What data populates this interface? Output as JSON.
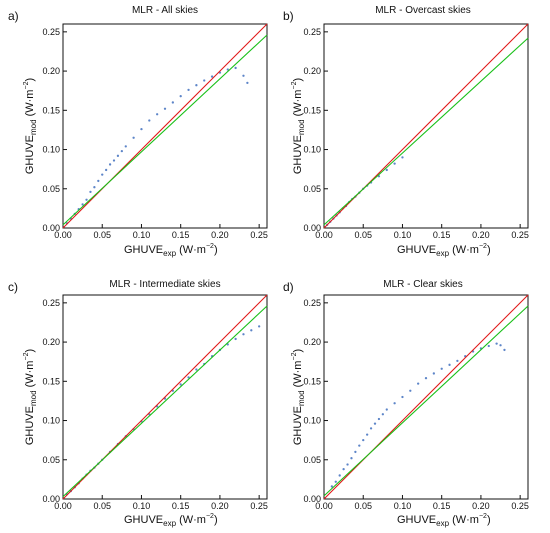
{
  "figure": {
    "panel_titles": [
      "MLR - All skies",
      "MLR - Overcast skies",
      "MLR - Intermediate skies",
      "MLR - Clear skies"
    ],
    "panel_letters": [
      "a)",
      "b)",
      "c)",
      "d)"
    ]
  },
  "chart_data": [
    {
      "type": "scatter",
      "title": "MLR - All skies",
      "panel": "a)",
      "xlabel": "GHUVE_exp (W·m^-2)",
      "ylabel": "GHUVE_mod (W·m^-2)",
      "xlim": [
        0,
        0.26
      ],
      "ylim": [
        0,
        0.26
      ],
      "xticks": [
        0.0,
        0.05,
        0.1,
        0.15,
        0.2,
        0.25
      ],
      "yticks": [
        0.0,
        0.05,
        0.1,
        0.15,
        0.2,
        0.25
      ],
      "series": [
        {
          "kind": "points",
          "color": "#2f63b8",
          "points": [
            [
              0.005,
              0.006
            ],
            [
              0.01,
              0.012
            ],
            [
              0.015,
              0.018
            ],
            [
              0.02,
              0.024
            ],
            [
              0.025,
              0.03
            ],
            [
              0.03,
              0.036
            ],
            [
              0.035,
              0.046
            ],
            [
              0.04,
              0.052
            ],
            [
              0.045,
              0.06
            ],
            [
              0.05,
              0.068
            ],
            [
              0.055,
              0.074
            ],
            [
              0.06,
              0.081
            ],
            [
              0.065,
              0.086
            ],
            [
              0.07,
              0.092
            ],
            [
              0.075,
              0.098
            ],
            [
              0.08,
              0.104
            ],
            [
              0.09,
              0.115
            ],
            [
              0.1,
              0.126
            ],
            [
              0.11,
              0.137
            ],
            [
              0.12,
              0.145
            ],
            [
              0.13,
              0.152
            ],
            [
              0.14,
              0.16
            ],
            [
              0.15,
              0.168
            ],
            [
              0.16,
              0.176
            ],
            [
              0.17,
              0.182
            ],
            [
              0.18,
              0.188
            ],
            [
              0.19,
              0.193
            ],
            [
              0.2,
              0.198
            ],
            [
              0.21,
              0.202
            ],
            [
              0.22,
              0.204
            ],
            [
              0.23,
              0.194
            ],
            [
              0.235,
              0.185
            ]
          ]
        },
        {
          "kind": "line",
          "name": "",
          "color": "#e11919",
          "x": [
            0.0,
            0.26
          ],
          "y": [
            0.0,
            0.26
          ]
        },
        {
          "kind": "line",
          "name": "",
          "color": "#19c019",
          "x": [
            0.0,
            0.26
          ],
          "y": [
            0.004,
            0.246
          ]
        }
      ]
    },
    {
      "type": "scatter",
      "title": "MLR - Overcast skies",
      "panel": "b)",
      "xlabel": "GHUVE_exp (W·m^-2)",
      "ylabel": "GHUVE_mod (W·m^-2)",
      "xlim": [
        0,
        0.26
      ],
      "ylim": [
        0,
        0.26
      ],
      "xticks": [
        0.0,
        0.05,
        0.1,
        0.15,
        0.2,
        0.25
      ],
      "yticks": [
        0.0,
        0.05,
        0.1,
        0.15,
        0.2,
        0.25
      ],
      "series": [
        {
          "kind": "points",
          "color": "#2f63b8",
          "points": [
            [
              0.004,
              0.004
            ],
            [
              0.008,
              0.008
            ],
            [
              0.012,
              0.012
            ],
            [
              0.016,
              0.016
            ],
            [
              0.02,
              0.02
            ],
            [
              0.024,
              0.025
            ],
            [
              0.028,
              0.028
            ],
            [
              0.032,
              0.033
            ],
            [
              0.036,
              0.037
            ],
            [
              0.04,
              0.04
            ],
            [
              0.045,
              0.045
            ],
            [
              0.05,
              0.05
            ],
            [
              0.055,
              0.054
            ],
            [
              0.06,
              0.058
            ],
            [
              0.07,
              0.066
            ],
            [
              0.08,
              0.074
            ],
            [
              0.09,
              0.082
            ],
            [
              0.1,
              0.09
            ]
          ]
        },
        {
          "kind": "line",
          "name": "",
          "color": "#e11919",
          "x": [
            0.0,
            0.26
          ],
          "y": [
            0.0,
            0.26
          ]
        },
        {
          "kind": "line",
          "name": "",
          "color": "#19c019",
          "x": [
            0.0,
            0.26
          ],
          "y": [
            0.004,
            0.242
          ]
        }
      ]
    },
    {
      "type": "scatter",
      "title": "MLR - Intermediate skies",
      "panel": "c)",
      "xlabel": "GHUVE_exp (W·m^-2)",
      "ylabel": "GHUVE_mod (W·m^-2)",
      "xlim": [
        0,
        0.26
      ],
      "ylim": [
        0,
        0.26
      ],
      "xticks": [
        0.0,
        0.05,
        0.1,
        0.15,
        0.2,
        0.25
      ],
      "yticks": [
        0.0,
        0.05,
        0.1,
        0.15,
        0.2,
        0.25
      ],
      "series": [
        {
          "kind": "points",
          "color": "#2f63b8",
          "points": [
            [
              0.005,
              0.006
            ],
            [
              0.01,
              0.01
            ],
            [
              0.015,
              0.015
            ],
            [
              0.02,
              0.02
            ],
            [
              0.025,
              0.026
            ],
            [
              0.03,
              0.031
            ],
            [
              0.035,
              0.036
            ],
            [
              0.04,
              0.04
            ],
            [
              0.045,
              0.045
            ],
            [
              0.05,
              0.05
            ],
            [
              0.06,
              0.06
            ],
            [
              0.07,
              0.07
            ],
            [
              0.08,
              0.08
            ],
            [
              0.09,
              0.089
            ],
            [
              0.1,
              0.099
            ],
            [
              0.11,
              0.108
            ],
            [
              0.12,
              0.118
            ],
            [
              0.13,
              0.128
            ],
            [
              0.14,
              0.138
            ],
            [
              0.15,
              0.146
            ],
            [
              0.16,
              0.155
            ],
            [
              0.17,
              0.165
            ],
            [
              0.18,
              0.172
            ],
            [
              0.19,
              0.182
            ],
            [
              0.2,
              0.19
            ],
            [
              0.21,
              0.197
            ],
            [
              0.22,
              0.204
            ],
            [
              0.23,
              0.21
            ],
            [
              0.24,
              0.215
            ],
            [
              0.25,
              0.22
            ]
          ]
        },
        {
          "kind": "line",
          "name": "",
          "color": "#e11919",
          "x": [
            0.0,
            0.26
          ],
          "y": [
            0.0,
            0.26
          ]
        },
        {
          "kind": "line",
          "name": "",
          "color": "#19c019",
          "x": [
            0.0,
            0.26
          ],
          "y": [
            0.003,
            0.246
          ]
        }
      ]
    },
    {
      "type": "scatter",
      "title": "MLR - Clear skies",
      "panel": "d)",
      "xlabel": "GHUVE_exp (W·m^-2)",
      "ylabel": "GHUVE_mod (W·m^-2)",
      "xlim": [
        0,
        0.26
      ],
      "ylim": [
        0,
        0.26
      ],
      "xticks": [
        0.0,
        0.05,
        0.1,
        0.15,
        0.2,
        0.25
      ],
      "yticks": [
        0.0,
        0.05,
        0.1,
        0.15,
        0.2,
        0.25
      ],
      "series": [
        {
          "kind": "points",
          "color": "#2f63b8",
          "points": [
            [
              0.01,
              0.016
            ],
            [
              0.015,
              0.022
            ],
            [
              0.02,
              0.03
            ],
            [
              0.025,
              0.038
            ],
            [
              0.03,
              0.044
            ],
            [
              0.035,
              0.052
            ],
            [
              0.04,
              0.06
            ],
            [
              0.045,
              0.068
            ],
            [
              0.05,
              0.075
            ],
            [
              0.055,
              0.082
            ],
            [
              0.06,
              0.09
            ],
            [
              0.065,
              0.096
            ],
            [
              0.07,
              0.102
            ],
            [
              0.075,
              0.108
            ],
            [
              0.08,
              0.114
            ],
            [
              0.09,
              0.122
            ],
            [
              0.1,
              0.13
            ],
            [
              0.11,
              0.138
            ],
            [
              0.12,
              0.147
            ],
            [
              0.13,
              0.154
            ],
            [
              0.14,
              0.16
            ],
            [
              0.15,
              0.166
            ],
            [
              0.16,
              0.171
            ],
            [
              0.17,
              0.176
            ],
            [
              0.18,
              0.182
            ],
            [
              0.19,
              0.188
            ],
            [
              0.2,
              0.192
            ],
            [
              0.21,
              0.195
            ],
            [
              0.22,
              0.198
            ],
            [
              0.225,
              0.196
            ],
            [
              0.23,
              0.19
            ]
          ]
        },
        {
          "kind": "line",
          "name": "",
          "color": "#e11919",
          "x": [
            0.0,
            0.26
          ],
          "y": [
            0.0,
            0.26
          ]
        },
        {
          "kind": "line",
          "name": "",
          "color": "#19c019",
          "x": [
            0.0,
            0.26
          ],
          "y": [
            0.004,
            0.246
          ]
        }
      ]
    }
  ]
}
